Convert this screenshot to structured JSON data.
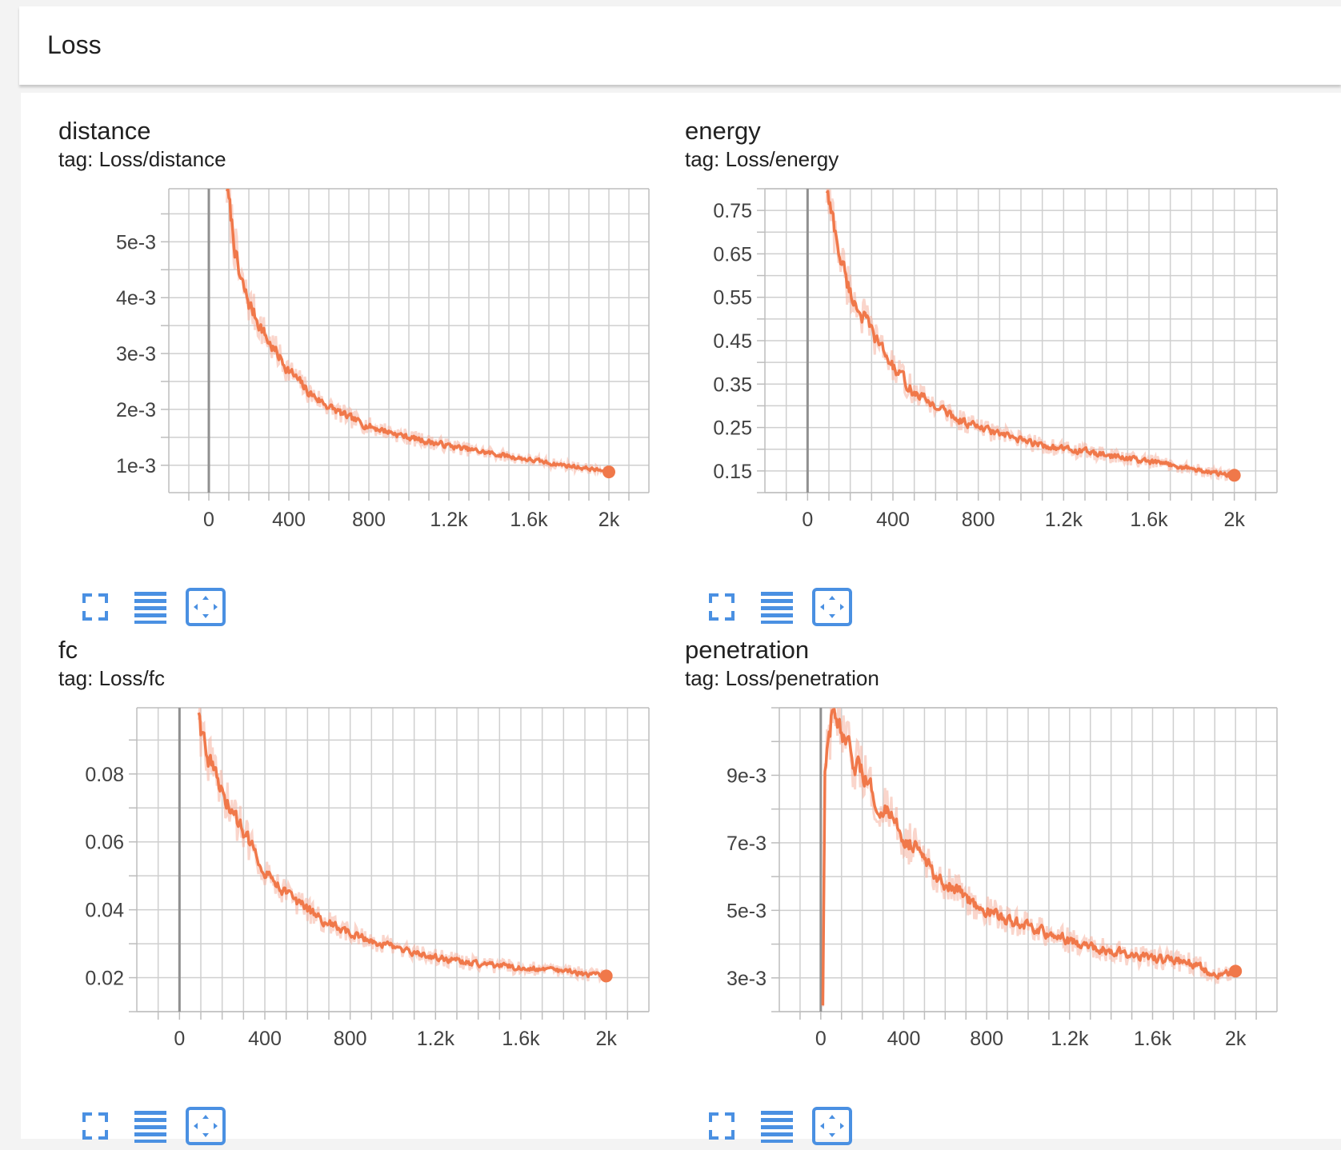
{
  "header": {
    "title": "Loss"
  },
  "toolbar_icons": [
    "fullscreen-icon",
    "data-table-icon",
    "fit-domain-icon"
  ],
  "colors": {
    "accent": "#f0784a",
    "raw": "#f5b3a0",
    "icon": "#4a90e2"
  },
  "chart_data": [
    {
      "type": "line",
      "title": "distance",
      "tag": "tag: Loss/distance",
      "xlim": [
        -200,
        2200
      ],
      "ylim": [
        0.00051,
        0.00595
      ],
      "xticks": [
        0,
        400,
        800,
        1200,
        1600,
        2000
      ],
      "xtick_labels": [
        "0",
        "400",
        "800",
        "1.2k",
        "1.6k",
        "2k"
      ],
      "yticks": [
        0.001,
        0.002,
        0.003,
        0.004,
        0.005
      ],
      "ytick_labels": [
        "1e-3",
        "2e-3",
        "3e-3",
        "4e-3",
        "5e-3"
      ],
      "grid": true,
      "series": [
        {
          "x": [
            90,
            100,
            150,
            200,
            300,
            400,
            500,
            600,
            700,
            800,
            900,
            1000,
            1100,
            1200,
            1300,
            1400,
            1500,
            1600,
            1700,
            1800,
            1900,
            2000
          ],
          "y": [
            0.006,
            0.0057,
            0.0044,
            0.0039,
            0.0032,
            0.0027,
            0.0023,
            0.00205,
            0.00185,
            0.0017,
            0.0016,
            0.0015,
            0.00142,
            0.00135,
            0.00128,
            0.00122,
            0.00116,
            0.0011,
            0.00104,
            0.00099,
            0.00094,
            0.00088
          ]
        }
      ]
    },
    {
      "type": "line",
      "title": "energy",
      "tag": "tag: Loss/energy",
      "xlim": [
        -200,
        2200
      ],
      "ylim": [
        0.1,
        0.8
      ],
      "xticks": [
        0,
        400,
        800,
        1200,
        1600,
        2000
      ],
      "xtick_labels": [
        "0",
        "400",
        "800",
        "1.2k",
        "1.6k",
        "2k"
      ],
      "yticks": [
        0.15,
        0.25,
        0.35,
        0.45,
        0.55,
        0.65,
        0.75
      ],
      "ytick_labels": [
        "0.15",
        "0.25",
        "0.35",
        "0.45",
        "0.55",
        "0.65",
        "0.75"
      ],
      "grid": true,
      "series": [
        {
          "x": [
            90,
            100,
            150,
            200,
            300,
            400,
            500,
            600,
            700,
            800,
            900,
            1000,
            1100,
            1200,
            1300,
            1400,
            1500,
            1600,
            1700,
            1800,
            1900,
            2000
          ],
          "y": [
            0.8,
            0.77,
            0.65,
            0.56,
            0.47,
            0.39,
            0.33,
            0.3,
            0.27,
            0.25,
            0.235,
            0.22,
            0.21,
            0.2,
            0.195,
            0.185,
            0.18,
            0.17,
            0.165,
            0.155,
            0.145,
            0.14
          ]
        }
      ]
    },
    {
      "type": "line",
      "title": "fc",
      "tag": "tag: Loss/fc",
      "xlim": [
        -200,
        2200
      ],
      "ylim": [
        0.01,
        0.0995
      ],
      "xticks": [
        0,
        400,
        800,
        1200,
        1600,
        2000
      ],
      "xtick_labels": [
        "0",
        "400",
        "800",
        "1.2k",
        "1.6k",
        "2k"
      ],
      "yticks": [
        0.02,
        0.04,
        0.06,
        0.08
      ],
      "ytick_labels": [
        "0.02",
        "0.04",
        "0.06",
        "0.08"
      ],
      "grid": true,
      "series": [
        {
          "x": [
            90,
            100,
            150,
            200,
            300,
            400,
            500,
            600,
            700,
            800,
            900,
            1000,
            1100,
            1200,
            1300,
            1400,
            1500,
            1600,
            1700,
            1800,
            1900,
            2000
          ],
          "y": [
            0.099,
            0.094,
            0.082,
            0.074,
            0.063,
            0.052,
            0.045,
            0.04,
            0.036,
            0.033,
            0.031,
            0.029,
            0.027,
            0.026,
            0.025,
            0.024,
            0.0235,
            0.023,
            0.0225,
            0.022,
            0.021,
            0.0205
          ]
        }
      ]
    },
    {
      "type": "line",
      "title": "penetration",
      "tag": "tag: Loss/penetration",
      "xlim": [
        -200,
        2200
      ],
      "ylim": [
        0.002,
        0.011
      ],
      "xticks": [
        0,
        400,
        800,
        1200,
        1600,
        2000
      ],
      "xtick_labels": [
        "0",
        "400",
        "800",
        "1.2k",
        "1.6k",
        "2k"
      ],
      "yticks": [
        0.003,
        0.005,
        0.007,
        0.009
      ],
      "ytick_labels": [
        "3e-3",
        "5e-3",
        "7e-3",
        "9e-3"
      ],
      "grid": true,
      "series": [
        {
          "x": [
            10,
            20,
            40,
            60,
            80,
            100,
            150,
            200,
            300,
            400,
            500,
            600,
            700,
            800,
            900,
            1000,
            1100,
            1200,
            1300,
            1400,
            1500,
            1600,
            1700,
            1800,
            1900,
            2000
          ],
          "y": [
            0.0022,
            0.009,
            0.01,
            0.011,
            0.0105,
            0.01,
            0.0095,
            0.009,
            0.008,
            0.0072,
            0.0065,
            0.0058,
            0.0054,
            0.005,
            0.0047,
            0.0045,
            0.0043,
            0.0041,
            0.0039,
            0.0038,
            0.0037,
            0.0036,
            0.0035,
            0.0034,
            0.0031,
            0.0032
          ]
        }
      ]
    }
  ]
}
